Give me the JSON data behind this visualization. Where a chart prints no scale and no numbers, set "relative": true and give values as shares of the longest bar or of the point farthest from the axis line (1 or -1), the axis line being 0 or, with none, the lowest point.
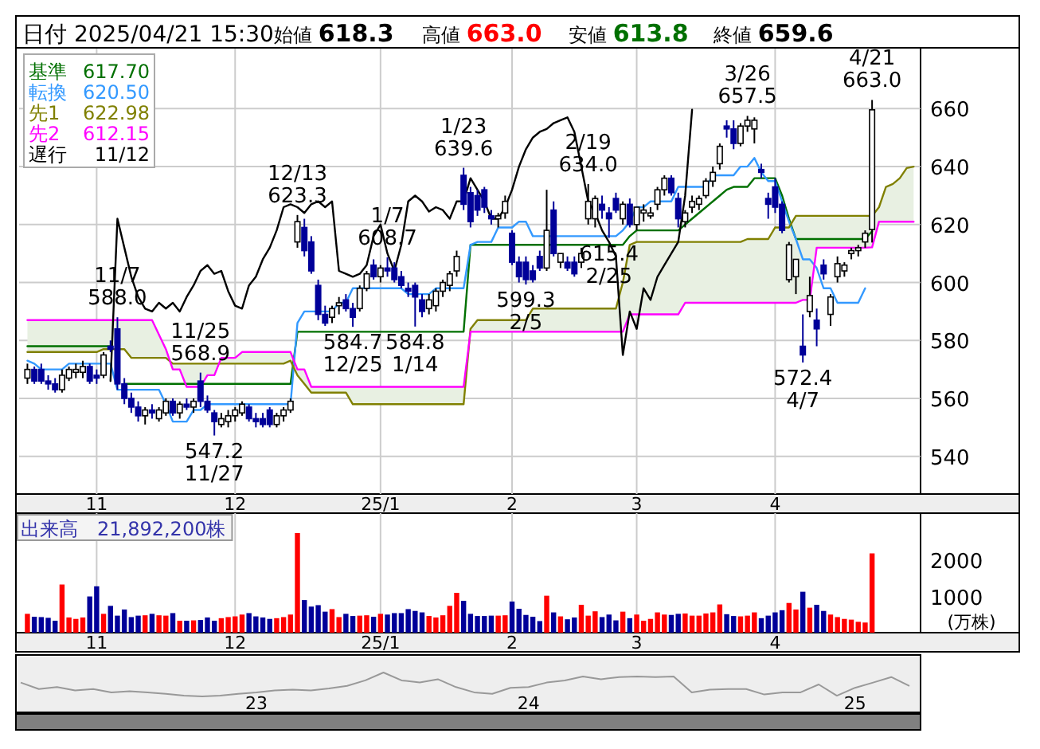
{
  "chart_data": [
    {
      "type": "candlestick",
      "title": "日付 2025/04/21 15:30",
      "grid": true,
      "legend": "top left",
      "ylim": [
        527,
        681
      ],
      "yticks": [
        540,
        560,
        580,
        600,
        620,
        640,
        660
      ],
      "categories": [
        null,
        null,
        null,
        null,
        null,
        null,
        null,
        null,
        null,
        null,
        "11",
        null,
        null,
        null,
        null,
        null,
        null,
        null,
        null,
        null,
        null,
        null,
        null,
        null,
        null,
        null,
        null,
        null,
        null,
        null,
        "12",
        null,
        null,
        null,
        null,
        null,
        null,
        null,
        null,
        null,
        null,
        null,
        null,
        null,
        null,
        null,
        null,
        null,
        null,
        null,
        null,
        "25/1",
        null,
        null,
        null,
        null,
        null,
        null,
        null,
        null,
        null,
        null,
        null,
        null,
        null,
        null,
        null,
        null,
        null,
        null,
        "2",
        null,
        null,
        null,
        null,
        null,
        null,
        null,
        null,
        null,
        null,
        null,
        null,
        null,
        null,
        null,
        null,
        null,
        "3",
        null,
        null,
        null,
        null,
        null,
        null,
        null,
        null,
        null,
        null,
        null,
        null,
        null,
        null,
        null,
        null,
        null,
        null,
        null,
        "4",
        null,
        null,
        null,
        null,
        null,
        null,
        null,
        null,
        null,
        null,
        null,
        null,
        null,
        null,
        null,
        null,
        null,
        null,
        null,
        null
      ],
      "ohlc": [
        [
          567,
          572,
          565,
          570
        ],
        [
          570,
          571,
          565,
          566
        ],
        [
          570,
          572,
          565,
          566
        ],
        [
          566,
          568,
          563,
          565
        ],
        [
          565,
          567,
          562,
          563
        ],
        [
          563,
          570,
          562,
          568
        ],
        [
          567,
          571,
          566,
          570
        ],
        [
          569,
          572,
          567,
          570
        ],
        [
          569,
          573,
          567,
          571
        ],
        [
          571,
          572,
          565,
          566
        ],
        [
          568,
          570,
          565,
          567
        ],
        [
          568,
          576,
          567,
          575
        ],
        [
          578,
          580,
          576,
          577
        ],
        [
          584,
          588.0,
          563,
          565
        ],
        [
          565,
          567,
          558,
          560
        ],
        [
          560,
          562,
          555,
          557
        ],
        [
          557,
          559,
          552,
          554
        ],
        [
          554,
          557,
          551,
          556
        ],
        [
          556,
          558,
          553,
          555
        ],
        [
          553,
          557,
          552,
          556
        ],
        [
          555,
          560,
          554,
          559
        ],
        [
          559,
          560,
          554,
          555
        ],
        [
          555,
          559,
          553,
          558
        ],
        [
          558,
          560,
          556,
          557
        ],
        [
          557,
          560,
          555,
          559
        ],
        [
          566,
          568.9,
          557,
          559
        ],
        [
          559,
          561,
          555,
          556
        ],
        [
          555,
          556,
          547.2,
          552
        ],
        [
          551,
          555,
          550,
          553
        ],
        [
          552,
          556,
          550,
          554
        ],
        [
          554,
          557,
          552,
          556
        ],
        [
          555,
          559,
          554,
          558
        ],
        [
          557,
          558,
          552,
          553
        ],
        [
          553,
          555,
          550,
          552
        ],
        [
          553,
          555,
          550,
          551
        ],
        [
          556,
          557,
          550,
          551
        ],
        [
          551,
          555,
          550,
          554
        ],
        [
          554,
          557,
          552,
          556
        ],
        [
          556,
          560,
          555,
          559
        ],
        [
          614,
          623.3,
          612,
          621
        ],
        [
          619,
          622,
          609,
          611
        ],
        [
          614,
          616,
          603,
          604
        ],
        [
          599,
          601,
          587,
          589
        ],
        [
          589,
          592,
          585,
          586
        ],
        [
          588,
          592,
          586,
          591
        ],
        [
          592,
          595,
          589,
          593
        ],
        [
          594,
          596,
          590,
          591
        ],
        [
          591,
          593,
          584.7,
          588
        ],
        [
          591,
          599,
          590,
          598
        ],
        [
          598,
          604,
          597,
          603
        ],
        [
          606,
          608,
          601,
          602
        ],
        [
          602,
          606,
          600,
          605
        ],
        [
          605,
          608.7,
          602,
          604
        ],
        [
          605,
          607,
          600,
          601
        ],
        [
          602,
          604,
          598,
          599
        ],
        [
          598,
          600,
          595,
          597
        ],
        [
          599,
          600,
          584.8,
          595
        ],
        [
          594,
          596,
          588,
          590
        ],
        [
          591,
          596,
          589,
          594
        ],
        [
          592,
          598,
          590,
          597
        ],
        [
          597,
          601,
          595,
          600
        ],
        [
          599,
          604,
          597,
          603
        ],
        [
          604,
          611,
          602,
          609
        ],
        [
          637,
          639.6,
          625,
          627
        ],
        [
          631,
          633,
          619,
          621
        ],
        [
          630,
          632,
          623,
          625
        ],
        [
          632,
          633,
          624,
          626
        ],
        [
          623,
          625,
          620,
          622
        ],
        [
          622,
          624,
          619,
          623
        ],
        [
          624,
          630,
          622,
          628
        ],
        [
          617,
          618,
          606,
          607
        ],
        [
          607,
          609,
          600,
          602
        ],
        [
          607,
          609,
          599.3,
          601
        ],
        [
          604,
          606,
          600,
          601
        ],
        [
          609,
          611,
          604,
          605
        ],
        [
          605,
          632,
          604,
          618
        ],
        [
          625,
          628,
          609,
          610
        ],
        [
          607,
          610,
          605,
          610
        ],
        [
          607,
          609,
          604,
          605
        ],
        [
          607,
          609,
          602,
          603
        ],
        [
          607,
          612,
          605,
          610
        ],
        [
          622,
          634.0,
          620,
          628
        ],
        [
          622,
          630,
          619,
          629
        ],
        [
          627,
          630,
          622,
          625
        ],
        [
          624,
          626,
          615.4,
          622
        ],
        [
          629,
          631,
          624,
          625
        ],
        [
          622,
          628,
          620,
          627
        ],
        [
          627,
          629,
          619,
          620
        ],
        [
          620,
          626,
          618,
          626
        ],
        [
          624,
          627,
          621,
          625
        ],
        [
          623,
          626,
          622,
          624
        ],
        [
          627,
          633,
          625,
          632
        ],
        [
          632,
          637,
          630,
          636
        ],
        [
          636,
          637,
          630,
          631
        ],
        [
          629,
          631,
          619,
          622
        ],
        [
          621,
          625,
          619,
          624
        ],
        [
          626,
          630,
          624,
          628
        ],
        [
          627,
          630,
          625,
          629
        ],
        [
          630,
          636,
          629,
          635
        ],
        [
          635,
          640,
          633,
          638
        ],
        [
          641,
          648,
          639,
          647
        ],
        [
          654,
          656,
          650,
          653
        ],
        [
          653,
          656,
          646,
          648
        ],
        [
          648,
          655,
          647,
          654
        ],
        [
          654,
          657.5,
          652,
          656
        ],
        [
          653,
          657,
          648,
          656
        ],
        [
          639,
          641,
          636,
          638
        ],
        [
          629,
          631,
          622,
          627
        ],
        [
          633,
          636,
          624,
          626
        ],
        [
          627,
          628,
          617,
          618
        ],
        [
          601,
          614,
          600,
          613
        ],
        [
          602,
          608,
          596,
          608
        ],
        [
          578,
          589,
          572.4,
          575
        ],
        [
          590,
          602,
          588,
          595.5
        ],
        [
          587,
          591,
          578,
          584
        ],
        [
          606,
          608,
          601,
          603
        ],
        [
          589,
          596,
          585,
          595
        ],
        [
          602,
          609,
          600,
          606.5
        ],
        [
          604,
          607,
          602,
          606
        ],
        [
          610,
          612,
          608,
          611
        ],
        [
          611,
          613,
          609,
          612
        ],
        [
          614,
          618,
          612,
          617
        ],
        [
          618.3,
          663.0,
          613.8,
          659.6
        ],
        null,
        null,
        null,
        null,
        null,
        null
      ],
      "series": [
        {
          "name": "基準",
          "type": "line",
          "color": "#007000",
          "values": [
            578,
            578,
            578,
            578,
            578,
            578,
            578,
            578,
            578,
            578,
            578,
            578,
            578,
            null,
            565,
            565,
            565,
            565,
            565,
            565,
            565,
            565,
            565,
            565,
            565,
            565,
            565,
            565,
            565,
            565,
            565,
            565,
            565,
            565,
            565,
            565,
            565,
            565,
            565,
            583,
            583,
            583,
            583,
            583,
            583,
            583,
            583,
            583,
            583,
            583,
            583,
            583,
            583,
            583,
            583,
            583,
            583,
            583,
            583,
            583,
            583,
            583,
            583,
            583,
            613,
            613,
            613,
            613,
            613,
            613,
            613,
            613,
            613,
            613,
            613,
            613,
            613,
            613,
            613,
            613,
            613,
            613,
            613,
            613,
            613,
            613,
            613,
            616,
            618,
            618,
            618,
            618,
            618,
            618,
            618,
            620,
            622,
            624,
            626,
            628,
            630,
            632,
            633,
            633,
            633,
            636,
            636,
            636,
            636,
            630,
            622,
            615,
            615,
            615,
            615,
            615,
            615,
            615,
            615,
            615,
            615,
            615,
            617.7,
            null,
            null,
            null,
            null,
            null,
            null
          ]
        },
        {
          "name": "転換",
          "type": "line",
          "color": "#3399ff",
          "values": [
            573,
            572,
            570,
            570,
            570,
            570,
            572,
            572,
            572,
            572,
            572,
            572,
            572,
            563,
            563,
            563,
            563,
            563,
            563,
            563,
            558,
            552,
            552,
            552,
            556,
            556,
            558,
            558,
            558,
            558,
            558,
            558,
            558,
            558,
            558,
            558,
            558,
            558,
            558,
            586,
            590,
            590,
            590,
            590,
            590,
            593,
            593,
            598,
            598,
            598,
            598,
            598,
            598,
            598,
            598,
            596,
            596,
            596,
            596,
            598,
            598,
            598,
            598,
            598,
            613,
            614,
            614,
            614,
            619,
            619,
            619,
            621,
            621,
            616,
            616,
            616,
            616,
            616,
            616,
            616,
            616,
            616,
            616,
            616,
            616,
            616,
            618,
            621,
            626,
            626,
            628,
            628,
            628,
            628,
            633,
            633,
            633,
            633,
            633,
            637,
            637,
            637,
            637,
            640,
            640,
            643,
            638,
            635,
            635,
            628,
            621,
            615,
            608,
            608,
            605,
            598,
            598,
            593,
            593,
            593,
            593,
            598,
            null,
            null,
            null,
            null,
            null,
            null,
            null
          ]
        },
        {
          "name": "先1",
          "type": "line",
          "color": "#808000",
          "values": [
            576,
            576,
            576,
            576,
            576,
            576,
            576,
            576,
            576,
            576,
            576,
            577,
            577,
            577,
            577,
            574,
            574,
            574,
            574,
            574,
            574,
            572,
            572,
            572,
            572,
            572,
            572,
            572,
            572,
            572,
            572,
            572,
            572,
            572,
            572,
            572,
            572,
            572,
            573,
            568,
            565,
            562,
            562,
            562,
            562,
            562,
            562,
            558,
            558,
            558,
            558,
            558,
            558,
            558,
            558,
            558,
            558,
            558,
            558,
            558,
            558,
            558,
            558,
            558,
            584,
            587,
            587,
            587,
            587,
            587,
            587,
            587,
            587,
            591,
            591,
            591,
            591,
            591,
            591,
            591,
            591,
            591,
            591,
            591,
            591,
            591,
            600,
            613,
            614,
            614,
            614,
            614,
            614,
            614,
            614,
            614,
            614,
            614,
            614,
            614,
            614,
            614,
            614,
            614,
            615,
            615,
            615,
            615,
            619,
            619,
            619,
            623,
            623,
            623,
            623,
            623,
            623,
            623,
            623,
            623,
            623,
            623,
            622.98,
            626,
            633,
            634,
            636,
            639.5,
            640
          ]
        },
        {
          "name": "先2",
          "type": "line",
          "color": "#ff00ff",
          "values": [
            587,
            587,
            587,
            587,
            587,
            587,
            587,
            587,
            587,
            587,
            587,
            587,
            587,
            587,
            587,
            587,
            587,
            587,
            587,
            582,
            577,
            570,
            570,
            564,
            564,
            564,
            568,
            568,
            574,
            574,
            574,
            576,
            576,
            576,
            576,
            576,
            576,
            576,
            576,
            570,
            570,
            564,
            564,
            564,
            564,
            564,
            564,
            564,
            564,
            564,
            564,
            564,
            564,
            564,
            564,
            564,
            564,
            564,
            564,
            564,
            564,
            564,
            564,
            564,
            583,
            583,
            583,
            583,
            583,
            583,
            583,
            583,
            583,
            583,
            583,
            583,
            583,
            583,
            583,
            583,
            583,
            583,
            583,
            583,
            583,
            583,
            583,
            589,
            589,
            589,
            589,
            589,
            589,
            589,
            589,
            593,
            593,
            593,
            593,
            593,
            593,
            593,
            593,
            593,
            593,
            593,
            593,
            593,
            593,
            593,
            593,
            593,
            594,
            594,
            612,
            612,
            612,
            612,
            612,
            612,
            612,
            612,
            612.15,
            621,
            621,
            621,
            621,
            621,
            621
          ]
        },
        {
          "name": "遅行",
          "type": "line",
          "color": "#000000",
          "values": [
            null,
            null,
            null,
            null,
            null,
            null,
            null,
            null,
            null,
            null,
            null,
            null,
            566,
            622,
            612,
            602,
            595,
            591,
            590,
            593,
            591,
            593,
            590,
            595,
            599,
            604,
            606,
            603,
            604,
            597,
            592,
            591,
            599,
            602,
            608,
            612,
            618,
            626,
            627,
            626,
            624,
            627,
            628,
            626,
            628,
            604,
            603,
            602,
            603,
            606,
            616,
            620,
            610,
            604,
            613,
            628,
            630,
            628,
            624.5,
            626,
            625,
            622,
            628,
            628,
            636,
            632,
            628,
            622,
            622,
            626,
            632,
            640,
            646,
            650,
            652,
            653,
            655,
            656,
            657,
            652,
            640,
            628,
            624,
            618,
            614,
            609,
            575,
            590,
            584,
            598,
            594,
            602,
            606,
            610,
            614,
            630,
            659.6,
            null,
            null,
            null,
            null,
            null,
            null,
            null,
            null,
            null,
            null,
            null,
            null,
            null,
            null,
            null,
            null,
            null,
            null,
            null,
            null,
            null,
            null,
            null,
            null,
            null,
            null,
            null,
            null,
            null,
            null,
            null,
            null
          ]
        }
      ],
      "annotations": [
        "始値 618.3",
        "高値 663.0",
        "安値 613.8",
        "終値 659.6",
        "617.70",
        "620.50",
        "622.98",
        "612.15",
        "11/12",
        {
          "text": "11/7 588.0",
          "y": 588.0
        },
        {
          "text": "11/25 568.9",
          "y": 568.9
        },
        {
          "text": "547.2 11/27",
          "y": 547.2
        },
        {
          "text": "12/13 623.3",
          "y": 623.3
        },
        {
          "text": "584.7 12/25",
          "y": 584.7
        },
        {
          "text": "1/7 608.7",
          "y": 608.7
        },
        {
          "text": "584.8 1/14",
          "y": 584.8
        },
        {
          "text": "1/23 639.6",
          "y": 639.6
        },
        {
          "text": "599.3 2/5",
          "y": 599.3
        },
        {
          "text": "2/19 634.0",
          "y": 634.0
        },
        {
          "text": "615.4 2/25",
          "y": 615.4
        },
        {
          "text": "3/26 657.5",
          "y": 657.5
        },
        {
          "text": "572.4 4/7",
          "y": 572.4
        },
        {
          "text": "4/21 663.0",
          "y": 663.0
        }
      ]
    },
    {
      "type": "bar",
      "title": "出来高　21,892,200株",
      "ylabel": "(万株)",
      "grid": "x",
      "ylim": [
        0,
        3300
      ],
      "yticks": [
        1000,
        2000
      ],
      "categories": [
        null,
        null,
        null,
        null,
        null,
        null,
        null,
        null,
        null,
        null,
        "11",
        null,
        null,
        null,
        null,
        null,
        null,
        null,
        null,
        null,
        null,
        null,
        null,
        null,
        null,
        null,
        null,
        null,
        null,
        null,
        "12",
        null,
        null,
        null,
        null,
        null,
        null,
        null,
        null,
        null,
        null,
        null,
        null,
        null,
        null,
        null,
        null,
        null,
        null,
        null,
        null,
        "25/1",
        null,
        null,
        null,
        null,
        null,
        null,
        null,
        null,
        null,
        null,
        null,
        null,
        null,
        null,
        null,
        null,
        null,
        null,
        "2",
        null,
        null,
        null,
        null,
        null,
        null,
        null,
        null,
        null,
        null,
        null,
        null,
        null,
        null,
        null,
        null,
        null,
        "3",
        null,
        null,
        null,
        null,
        null,
        null,
        null,
        null,
        null,
        null,
        null,
        null,
        null,
        null,
        null,
        null,
        null,
        null,
        null,
        "4",
        null,
        null,
        null,
        null,
        null,
        null,
        null,
        null,
        null,
        null,
        null,
        null,
        null,
        null,
        null,
        null,
        null,
        null,
        null,
        null
      ],
      "values": [
        520,
        440,
        430,
        410,
        330,
        1330,
        420,
        380,
        420,
        1000,
        1280,
        520,
        740,
        470,
        640,
        430,
        470,
        480,
        520,
        480,
        470,
        540,
        330,
        330,
        340,
        350,
        420,
        330,
        400,
        430,
        450,
        500,
        540,
        450,
        420,
        380,
        400,
        430,
        500,
        2750,
        900,
        720,
        760,
        580,
        650,
        430,
        520,
        460,
        470,
        480,
        440,
        520,
        500,
        540,
        540,
        650,
        600,
        560,
        460,
        420,
        480,
        740,
        1100,
        880,
        520,
        460,
        460,
        470,
        470,
        480,
        860,
        660,
        490,
        440,
        320,
        1020,
        560,
        450,
        370,
        420,
        770,
        470,
        590,
        430,
        500,
        340,
        580,
        400,
        500,
        330,
        380,
        560,
        500,
        490,
        520,
        530,
        470,
        470,
        530,
        560,
        780,
        510,
        460,
        450,
        470,
        560,
        400,
        470,
        560,
        620,
        820,
        640,
        1130,
        690,
        770,
        600,
        500,
        430,
        380,
        360,
        300,
        280,
        2189,
        null,
        null,
        null,
        null,
        null,
        null
      ],
      "colors": [
        "#ff0000",
        "#000099",
        "#000099",
        "#000099",
        "#000099",
        "#ff0000",
        "#ff0000",
        "#ff0000",
        "#ff0000",
        "#000099",
        "#000099",
        "#ff0000",
        "#000099",
        "#000099",
        "#000099",
        "#000099",
        "#000099",
        "#ff0000",
        "#000099",
        "#ff0000",
        "#ff0000",
        "#000099",
        "#ff0000",
        "#000099",
        "#ff0000",
        "#000099",
        "#000099",
        "#000099",
        "#ff0000",
        "#ff0000",
        "#ff0000",
        "#ff0000",
        "#000099",
        "#000099",
        "#000099",
        "#000099",
        "#ff0000",
        "#ff0000",
        "#ff0000",
        "#ff0000",
        "#000099",
        "#000099",
        "#000099",
        "#000099",
        "#ff0000",
        "#ff0000",
        "#000099",
        "#000099",
        "#ff0000",
        "#ff0000",
        "#000099",
        "#ff0000",
        "#000099",
        "#000099",
        "#000099",
        "#000099",
        "#000099",
        "#000099",
        "#ff0000",
        "#ff0000",
        "#ff0000",
        "#ff0000",
        "#ff0000",
        "#000099",
        "#000099",
        "#000099",
        "#000099",
        "#000099",
        "#ff0000",
        "#ff0000",
        "#000099",
        "#000099",
        "#000099",
        "#000099",
        "#000099",
        "#ff0000",
        "#000099",
        "#ff0000",
        "#000099",
        "#000099",
        "#ff0000",
        "#ff0000",
        "#ff0000",
        "#000099",
        "#000099",
        "#000099",
        "#ff0000",
        "#000099",
        "#ff0000",
        "#ff0000",
        "#ff0000",
        "#ff0000",
        "#ff0000",
        "#000099",
        "#000099",
        "#ff0000",
        "#ff0000",
        "#ff0000",
        "#ff0000",
        "#ff0000",
        "#ff0000",
        "#000099",
        "#000099",
        "#ff0000",
        "#ff0000",
        "#ff0000",
        "#000099",
        "#000099",
        "#000099",
        "#000099",
        "#ff0000",
        "#ff0000",
        "#000099",
        "#ff0000",
        "#000099",
        "#000099",
        "#ff0000",
        "#ff0000",
        "#ff0000",
        "#ff0000",
        "#ff0000",
        "#ff0000",
        "#ff0000",
        null,
        null,
        null,
        null,
        null,
        null
      ]
    },
    {
      "type": "line",
      "relative": true,
      "categories": [
        null,
        null,
        null,
        null,
        null,
        null,
        null,
        null,
        null,
        null,
        null,
        null,
        null,
        "23",
        null,
        null,
        null,
        null,
        null,
        null,
        null,
        null,
        null,
        null,
        null,
        null,
        null,
        null,
        "24",
        null,
        null,
        null,
        null,
        null,
        null,
        null,
        null,
        null,
        null,
        null,
        null,
        null,
        null,
        null,
        null,
        null,
        "25",
        null,
        null,
        null
      ],
      "series": [
        {
          "color": "#999999",
          "values": [
            0.58,
            0.31,
            0.39,
            0.25,
            0.31,
            0.17,
            0.22,
            0.17,
            0.11,
            0.03,
            0,
            0.03,
            0.11,
            0.17,
            0.25,
            0.28,
            0.25,
            0.33,
            0.44,
            0.67,
            1,
            0.67,
            0.58,
            0.72,
            0.39,
            0.17,
            0.11,
            0.36,
            0.39,
            0.58,
            0.67,
            0.83,
            0.72,
            0.81,
            0.83,
            0.81,
            0.83,
            0.17,
            0.28,
            0.31,
            0.31,
            0.08,
            0.17,
            0.17,
            0.5,
            0.03,
            0.36,
            0.58,
            0.81,
            0.44
          ]
        }
      ]
    }
  ]
}
